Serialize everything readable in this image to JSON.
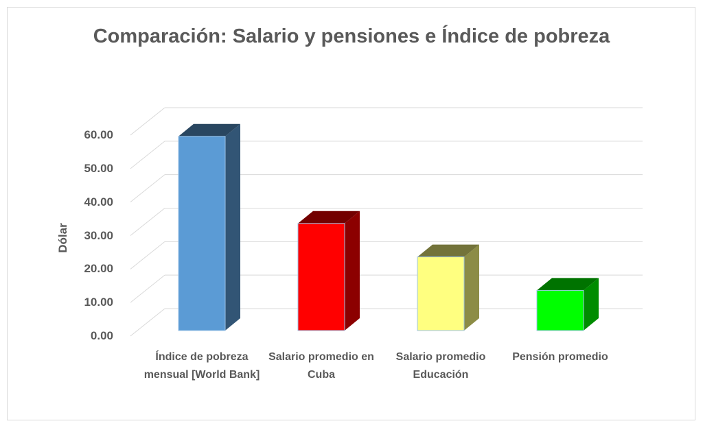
{
  "chart_data": {
    "type": "bar3d",
    "title": "Comparación: Salario y pensiones e Índice de pobreza",
    "y_label": "Dólar",
    "categories": [
      "Índice de pobreza mensual [World Bank]",
      "Salario promedio en Cuba",
      "Salario promedio Educación",
      "Pensión promedio"
    ],
    "values": [
      58,
      32,
      22,
      12
    ],
    "colors": [
      "#5b9bd5",
      "#ff0000",
      "#ffff80",
      "#00ff00"
    ],
    "ylim": [
      0,
      60
    ],
    "yticks": [
      {
        "value": 0,
        "label": "0.00"
      },
      {
        "value": 10,
        "label": "10.00"
      },
      {
        "value": 20,
        "label": "20.00"
      },
      {
        "value": 30,
        "label": "30.00"
      },
      {
        "value": 40,
        "label": "40.00"
      },
      {
        "value": 50,
        "label": "50.00"
      },
      {
        "value": 60,
        "label": "60.00"
      }
    ],
    "grid": true
  }
}
